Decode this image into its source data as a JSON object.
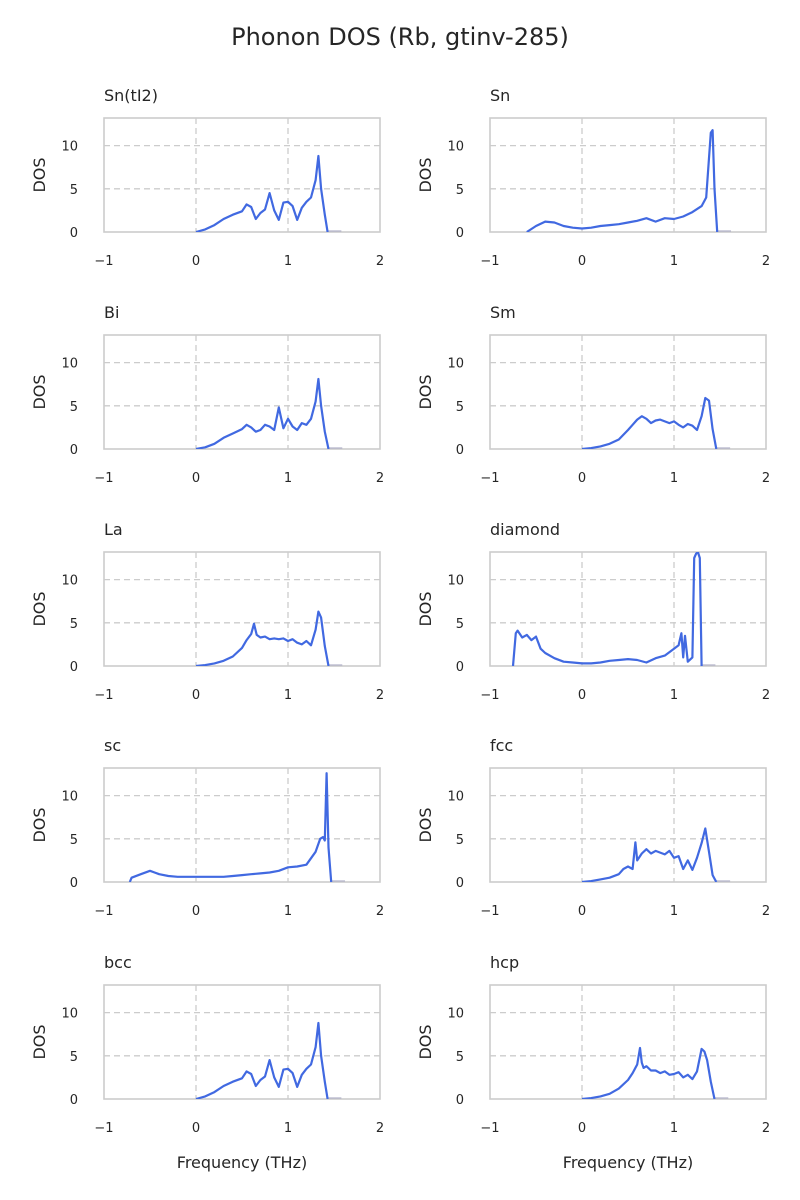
{
  "chart_data": {
    "type": "line",
    "title": "Phonon DOS (Rb, gtinv-285)",
    "xlabel": "Frequency (THz)",
    "ylabel": "DOS",
    "xlim": [
      -1,
      2
    ],
    "ylim": [
      0,
      13.2
    ],
    "xticks": [
      -1,
      0,
      1,
      2
    ],
    "yticks": [
      0,
      5,
      10
    ],
    "xtick_labels": [
      "−1",
      "0",
      "1",
      "2"
    ],
    "ytick_labels": [
      "0",
      "5",
      "10"
    ],
    "grid": "dashed",
    "color": "#4169e1",
    "panels": [
      {
        "title": "Sn(tI2)",
        "x": [
          0.0,
          0.1,
          0.2,
          0.3,
          0.4,
          0.5,
          0.55,
          0.6,
          0.65,
          0.7,
          0.75,
          0.8,
          0.85,
          0.9,
          0.95,
          1.0,
          1.05,
          1.1,
          1.15,
          1.2,
          1.25,
          1.3,
          1.33,
          1.36,
          1.4,
          1.43
        ],
        "y": [
          0,
          0.3,
          0.8,
          1.5,
          2,
          2.4,
          3.2,
          2.9,
          1.5,
          2.2,
          2.6,
          4.5,
          2.5,
          1.4,
          3.4,
          3.5,
          3,
          1.4,
          2.8,
          3.5,
          4,
          6,
          8.8,
          5,
          2,
          0
        ]
      },
      {
        "title": "Sn",
        "x": [
          -0.6,
          -0.5,
          -0.4,
          -0.3,
          -0.2,
          -0.1,
          0,
          0.1,
          0.2,
          0.3,
          0.4,
          0.5,
          0.6,
          0.7,
          0.8,
          0.9,
          1.0,
          1.1,
          1.2,
          1.3,
          1.35,
          1.4,
          1.42,
          1.44,
          1.47
        ],
        "y": [
          0,
          0.7,
          1.2,
          1.1,
          0.7,
          0.5,
          0.4,
          0.5,
          0.7,
          0.8,
          0.9,
          1.1,
          1.3,
          1.6,
          1.2,
          1.6,
          1.5,
          1.8,
          2.3,
          3,
          4,
          11.5,
          11.8,
          5,
          0
        ]
      },
      {
        "title": "Bi",
        "x": [
          0.0,
          0.1,
          0.2,
          0.3,
          0.4,
          0.5,
          0.55,
          0.6,
          0.65,
          0.7,
          0.75,
          0.8,
          0.85,
          0.9,
          0.95,
          1.0,
          1.05,
          1.1,
          1.15,
          1.2,
          1.25,
          1.3,
          1.33,
          1.36,
          1.4,
          1.44
        ],
        "y": [
          0,
          0.2,
          0.6,
          1.3,
          1.8,
          2.3,
          2.8,
          2.5,
          2,
          2.2,
          2.8,
          2.6,
          2.2,
          4.8,
          2.4,
          3.5,
          2.6,
          2.2,
          3,
          2.8,
          3.5,
          5.5,
          8.1,
          5,
          2,
          0
        ]
      },
      {
        "title": "Sm",
        "x": [
          0.0,
          0.1,
          0.2,
          0.3,
          0.4,
          0.5,
          0.55,
          0.6,
          0.65,
          0.7,
          0.75,
          0.8,
          0.85,
          0.9,
          0.95,
          1.0,
          1.05,
          1.1,
          1.15,
          1.2,
          1.25,
          1.3,
          1.34,
          1.38,
          1.42,
          1.46
        ],
        "y": [
          0,
          0.1,
          0.3,
          0.6,
          1.1,
          2.2,
          2.8,
          3.4,
          3.8,
          3.5,
          3.0,
          3.3,
          3.4,
          3.2,
          3.0,
          3.2,
          2.8,
          2.5,
          2.9,
          2.7,
          2.2,
          3.8,
          5.9,
          5.6,
          2.3,
          0
        ]
      },
      {
        "title": "La",
        "x": [
          0.0,
          0.1,
          0.2,
          0.3,
          0.4,
          0.5,
          0.55,
          0.6,
          0.63,
          0.66,
          0.7,
          0.75,
          0.8,
          0.85,
          0.9,
          0.95,
          1.0,
          1.05,
          1.1,
          1.15,
          1.2,
          1.25,
          1.3,
          1.33,
          1.36,
          1.4,
          1.44
        ],
        "y": [
          0,
          0.1,
          0.3,
          0.6,
          1.1,
          2.1,
          3.0,
          3.7,
          4.9,
          3.6,
          3.3,
          3.4,
          3.1,
          3.2,
          3.1,
          3.2,
          2.9,
          3.1,
          2.7,
          2.5,
          2.9,
          2.4,
          4.2,
          6.3,
          5.6,
          2.3,
          0
        ]
      },
      {
        "title": "diamond",
        "x": [
          -0.75,
          -0.72,
          -0.7,
          -0.65,
          -0.6,
          -0.55,
          -0.5,
          -0.45,
          -0.4,
          -0.3,
          -0.2,
          -0.1,
          0,
          0.1,
          0.2,
          0.3,
          0.4,
          0.5,
          0.6,
          0.7,
          0.8,
          0.9,
          1.0,
          1.05,
          1.08,
          1.1,
          1.12,
          1.15,
          1.2,
          1.22,
          1.24,
          1.26,
          1.28,
          1.3
        ],
        "y": [
          0,
          3.8,
          4.1,
          3.3,
          3.6,
          3.0,
          3.4,
          2.0,
          1.5,
          0.9,
          0.5,
          0.4,
          0.3,
          0.3,
          0.4,
          0.6,
          0.7,
          0.8,
          0.7,
          0.4,
          0.9,
          1.2,
          2.0,
          2.4,
          3.8,
          1.0,
          3.5,
          0.5,
          1.0,
          12.5,
          13.0,
          13.2,
          12.5,
          0
        ]
      },
      {
        "title": "sc",
        "x": [
          -0.72,
          -0.7,
          -0.6,
          -0.5,
          -0.45,
          -0.4,
          -0.3,
          -0.2,
          -0.1,
          0,
          0.1,
          0.2,
          0.3,
          0.4,
          0.5,
          0.6,
          0.7,
          0.8,
          0.9,
          1.0,
          1.1,
          1.2,
          1.3,
          1.35,
          1.38,
          1.4,
          1.42,
          1.44,
          1.47
        ],
        "y": [
          0,
          0.5,
          0.9,
          1.3,
          1.1,
          0.9,
          0.7,
          0.6,
          0.6,
          0.6,
          0.6,
          0.6,
          0.6,
          0.7,
          0.8,
          0.9,
          1.0,
          1.1,
          1.3,
          1.7,
          1.8,
          2.0,
          3.5,
          5.0,
          5.2,
          4.8,
          12.6,
          4.0,
          0
        ]
      },
      {
        "title": "fcc",
        "x": [
          0.0,
          0.1,
          0.2,
          0.3,
          0.4,
          0.45,
          0.5,
          0.55,
          0.58,
          0.6,
          0.65,
          0.7,
          0.75,
          0.8,
          0.85,
          0.9,
          0.95,
          1.0,
          1.05,
          1.1,
          1.15,
          1.2,
          1.25,
          1.3,
          1.34,
          1.38,
          1.42,
          1.46
        ],
        "y": [
          0,
          0.1,
          0.3,
          0.5,
          0.9,
          1.5,
          1.8,
          1.5,
          4.6,
          2.5,
          3.3,
          3.8,
          3.3,
          3.6,
          3.4,
          3.2,
          3.6,
          2.8,
          3.0,
          1.5,
          2.5,
          1.4,
          2.8,
          4.5,
          6.2,
          3.5,
          0.8,
          0
        ]
      },
      {
        "title": "bcc",
        "x": [
          0.0,
          0.1,
          0.2,
          0.3,
          0.4,
          0.5,
          0.55,
          0.6,
          0.65,
          0.7,
          0.75,
          0.8,
          0.85,
          0.9,
          0.95,
          1.0,
          1.05,
          1.1,
          1.15,
          1.2,
          1.25,
          1.3,
          1.33,
          1.36,
          1.4,
          1.43
        ],
        "y": [
          0,
          0.3,
          0.8,
          1.5,
          2,
          2.4,
          3.2,
          2.9,
          1.5,
          2.2,
          2.6,
          4.5,
          2.5,
          1.4,
          3.4,
          3.5,
          3,
          1.4,
          2.8,
          3.5,
          4,
          6,
          8.8,
          5,
          2,
          0
        ]
      },
      {
        "title": "hcp",
        "x": [
          0.0,
          0.1,
          0.2,
          0.3,
          0.4,
          0.5,
          0.55,
          0.6,
          0.63,
          0.65,
          0.67,
          0.7,
          0.75,
          0.8,
          0.85,
          0.9,
          0.95,
          1.0,
          1.05,
          1.1,
          1.15,
          1.2,
          1.25,
          1.3,
          1.33,
          1.36,
          1.4,
          1.44
        ],
        "y": [
          0,
          0.1,
          0.3,
          0.6,
          1.2,
          2.2,
          3.0,
          4.0,
          5.9,
          4.2,
          3.6,
          3.8,
          3.3,
          3.3,
          3.0,
          3.2,
          2.8,
          2.9,
          3.1,
          2.5,
          2.8,
          2.3,
          3.2,
          5.8,
          5.5,
          4.5,
          2.0,
          0
        ]
      }
    ]
  }
}
